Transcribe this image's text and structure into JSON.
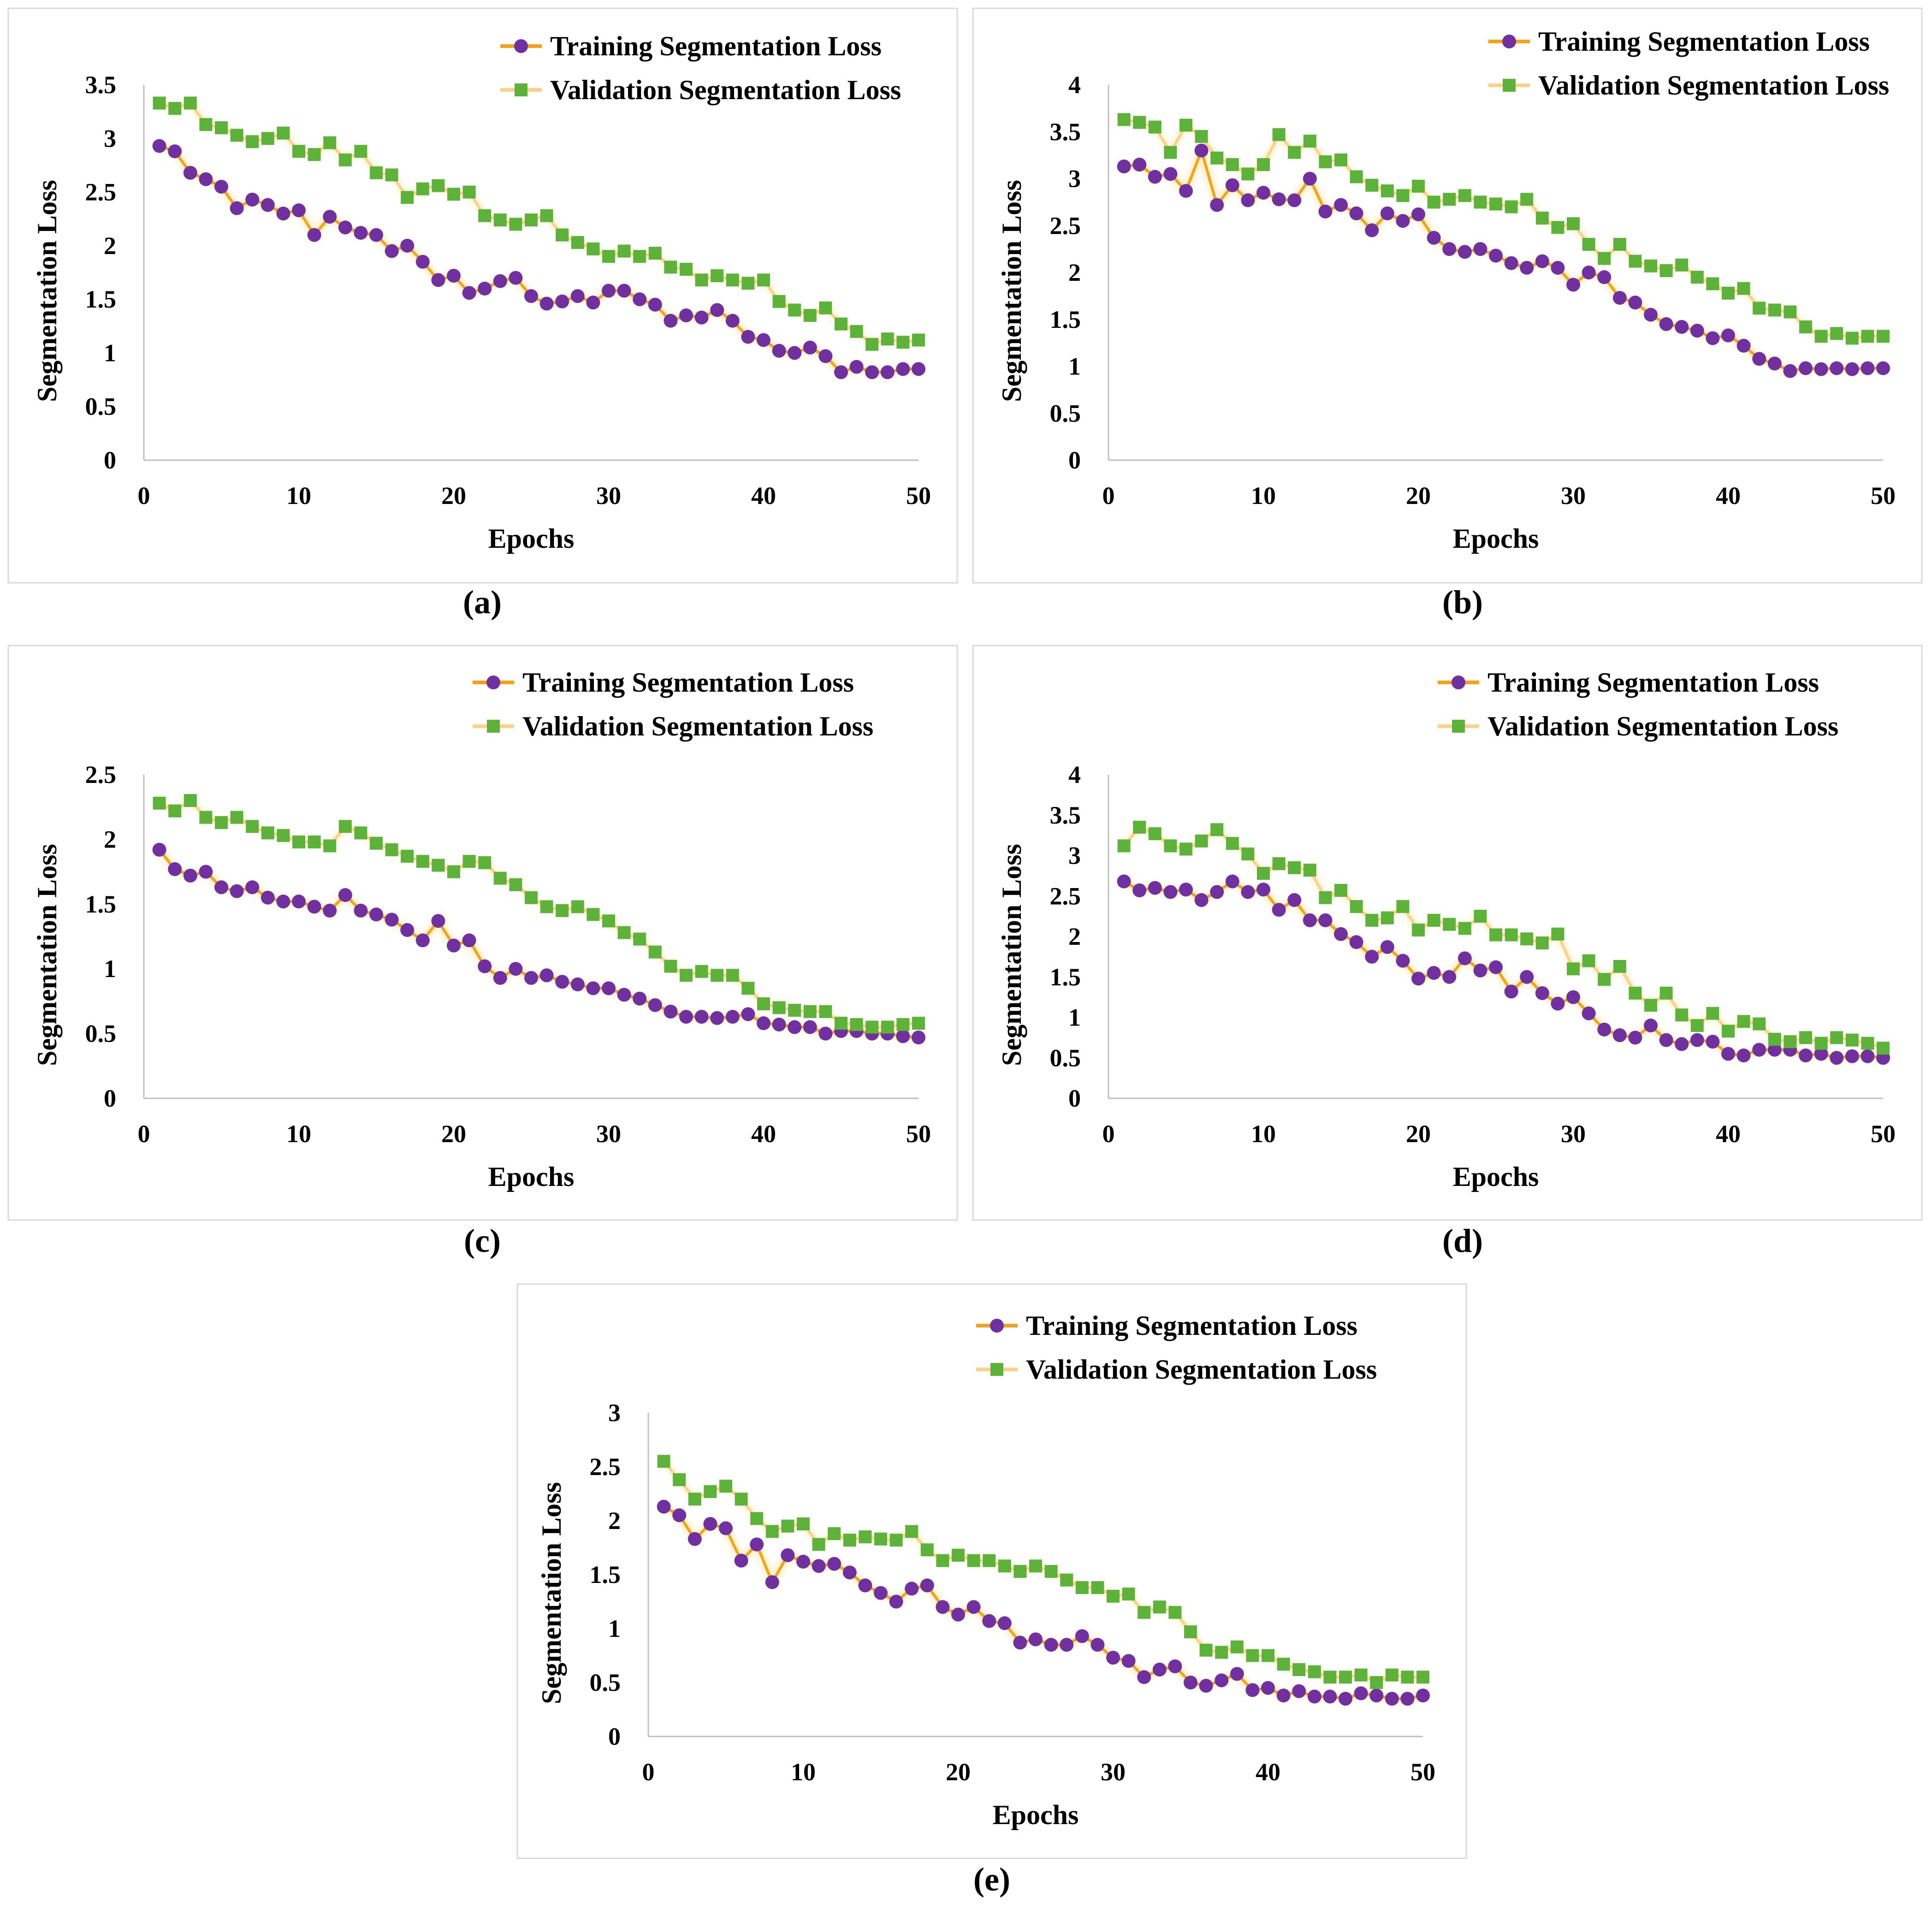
{
  "figure": {
    "colors": {
      "training_line": "#F2A31C",
      "training_marker": "#7030A0",
      "validation_line": "#FFD08A",
      "validation_marker": "#5DB33A",
      "frame": "#D9D9D9",
      "axis": "#BFBFBF"
    }
  },
  "chart_data": [
    {
      "type": "line",
      "caption": "(a)",
      "xlabel": "Epochs",
      "ylabel": "Segmentation Loss",
      "xlim": [
        0,
        50
      ],
      "ylim": [
        0,
        3.5
      ],
      "xticks": [
        "0",
        "10",
        "20",
        "30",
        "40",
        "50"
      ],
      "yticks": [
        "0",
        "0.5",
        "1",
        "1.5",
        "2",
        "2.5",
        "3",
        "3.5"
      ],
      "legend_position": "top-right",
      "x_start": 1,
      "series": [
        {
          "name": "Training Segmentation Loss",
          "values": [
            2.93,
            2.88,
            2.68,
            2.62,
            2.55,
            2.35,
            2.43,
            2.38,
            2.3,
            2.33,
            2.1,
            2.27,
            2.17,
            2.12,
            2.1,
            1.95,
            2.0,
            1.85,
            1.68,
            1.72,
            1.56,
            1.6,
            1.67,
            1.7,
            1.53,
            1.46,
            1.48,
            1.53,
            1.47,
            1.58,
            1.58,
            1.5,
            1.45,
            1.3,
            1.35,
            1.33,
            1.4,
            1.3,
            1.15,
            1.12,
            1.02,
            1.0,
            1.05,
            0.97,
            0.82,
            0.87,
            0.82,
            0.82,
            0.85,
            0.85
          ]
        },
        {
          "name": "Validation Segmentation Loss",
          "values": [
            3.33,
            3.28,
            3.33,
            3.13,
            3.1,
            3.03,
            2.97,
            3.0,
            3.05,
            2.88,
            2.85,
            2.96,
            2.8,
            2.88,
            2.68,
            2.66,
            2.45,
            2.53,
            2.56,
            2.48,
            2.5,
            2.28,
            2.24,
            2.2,
            2.24,
            2.28,
            2.1,
            2.03,
            1.97,
            1.9,
            1.95,
            1.9,
            1.93,
            1.8,
            1.78,
            1.68,
            1.72,
            1.68,
            1.65,
            1.68,
            1.48,
            1.4,
            1.35,
            1.42,
            1.27,
            1.2,
            1.08,
            1.13,
            1.1,
            1.12
          ]
        }
      ]
    },
    {
      "type": "line",
      "caption": "(b)",
      "xlabel": "Epochs",
      "ylabel": "Segmentation Loss",
      "xlim": [
        0,
        50
      ],
      "ylim": [
        0,
        4
      ],
      "xticks": [
        "0",
        "10",
        "20",
        "30",
        "40",
        "50"
      ],
      "yticks": [
        "0",
        "0.5",
        "1",
        "1.5",
        "2",
        "2.5",
        "3",
        "3.5",
        "4"
      ],
      "legend_position": "top-right",
      "x_start": 1,
      "series": [
        {
          "name": "Training Segmentation Loss",
          "values": [
            3.13,
            3.15,
            3.02,
            3.05,
            2.87,
            3.3,
            2.72,
            2.93,
            2.77,
            2.85,
            2.78,
            2.77,
            3.0,
            2.65,
            2.72,
            2.63,
            2.45,
            2.63,
            2.55,
            2.62,
            2.37,
            2.25,
            2.22,
            2.25,
            2.18,
            2.1,
            2.05,
            2.12,
            2.05,
            1.87,
            2.0,
            1.95,
            1.73,
            1.68,
            1.55,
            1.45,
            1.42,
            1.38,
            1.3,
            1.33,
            1.22,
            1.08,
            1.03,
            0.95,
            0.98,
            0.97,
            0.98,
            0.97,
            0.98,
            0.98
          ]
        },
        {
          "name": "Validation Segmentation Loss",
          "values": [
            3.63,
            3.6,
            3.55,
            3.28,
            3.57,
            3.45,
            3.22,
            3.15,
            3.05,
            3.15,
            3.47,
            3.28,
            3.4,
            3.18,
            3.2,
            3.02,
            2.93,
            2.87,
            2.82,
            2.92,
            2.75,
            2.78,
            2.82,
            2.75,
            2.73,
            2.7,
            2.78,
            2.58,
            2.48,
            2.52,
            2.3,
            2.15,
            2.3,
            2.12,
            2.07,
            2.02,
            2.08,
            1.95,
            1.88,
            1.78,
            1.83,
            1.62,
            1.6,
            1.58,
            1.42,
            1.32,
            1.35,
            1.3,
            1.32,
            1.32
          ]
        }
      ]
    },
    {
      "type": "line",
      "caption": "(c)",
      "xlabel": "Epochs",
      "ylabel": "Segmentation Loss",
      "xlim": [
        0,
        50
      ],
      "ylim": [
        0,
        2.5
      ],
      "xticks": [
        "0",
        "10",
        "20",
        "30",
        "40",
        "50"
      ],
      "yticks": [
        "0",
        "0.5",
        "1",
        "1.5",
        "2",
        "2.5"
      ],
      "legend_position": "top-right",
      "x_start": 1,
      "series": [
        {
          "name": "Training Segmentation Loss",
          "values": [
            1.92,
            1.77,
            1.72,
            1.75,
            1.63,
            1.6,
            1.63,
            1.55,
            1.52,
            1.52,
            1.48,
            1.45,
            1.57,
            1.45,
            1.42,
            1.38,
            1.3,
            1.22,
            1.37,
            1.18,
            1.22,
            1.02,
            0.93,
            1.0,
            0.93,
            0.95,
            0.9,
            0.88,
            0.85,
            0.85,
            0.8,
            0.77,
            0.72,
            0.67,
            0.63,
            0.63,
            0.62,
            0.63,
            0.65,
            0.58,
            0.57,
            0.55,
            0.55,
            0.5,
            0.52,
            0.52,
            0.5,
            0.5,
            0.48,
            0.47
          ]
        },
        {
          "name": "Validation Segmentation Loss",
          "values": [
            2.28,
            2.22,
            2.3,
            2.17,
            2.13,
            2.17,
            2.1,
            2.05,
            2.03,
            1.98,
            1.98,
            1.95,
            2.1,
            2.05,
            1.97,
            1.92,
            1.87,
            1.83,
            1.8,
            1.75,
            1.83,
            1.82,
            1.7,
            1.65,
            1.55,
            1.48,
            1.45,
            1.48,
            1.42,
            1.37,
            1.28,
            1.23,
            1.13,
            1.02,
            0.95,
            0.98,
            0.95,
            0.95,
            0.85,
            0.73,
            0.7,
            0.68,
            0.67,
            0.67,
            0.58,
            0.57,
            0.55,
            0.55,
            0.57,
            0.58
          ]
        }
      ]
    },
    {
      "type": "line",
      "caption": "(d)",
      "xlabel": "Epochs",
      "ylabel": "Segmentation Loss",
      "xlim": [
        0,
        50
      ],
      "ylim": [
        0,
        4
      ],
      "xticks": [
        "0",
        "10",
        "20",
        "30",
        "40",
        "50"
      ],
      "yticks": [
        "0",
        "0.5",
        "1",
        "1.5",
        "2",
        "2.5",
        "3",
        "3.5",
        "4"
      ],
      "legend_position": "top-right",
      "x_start": 1,
      "series": [
        {
          "name": "Training Segmentation Loss",
          "values": [
            2.68,
            2.57,
            2.6,
            2.55,
            2.58,
            2.45,
            2.55,
            2.68,
            2.55,
            2.58,
            2.33,
            2.45,
            2.2,
            2.2,
            2.03,
            1.93,
            1.75,
            1.87,
            1.7,
            1.48,
            1.55,
            1.5,
            1.73,
            1.58,
            1.62,
            1.32,
            1.5,
            1.3,
            1.17,
            1.25,
            1.05,
            0.85,
            0.78,
            0.75,
            0.9,
            0.72,
            0.67,
            0.72,
            0.7,
            0.55,
            0.53,
            0.6,
            0.6,
            0.6,
            0.53,
            0.55,
            0.5,
            0.52,
            0.52,
            0.5
          ]
        },
        {
          "name": "Validation Segmentation Loss",
          "values": [
            3.12,
            3.35,
            3.27,
            3.12,
            3.08,
            3.18,
            3.32,
            3.15,
            3.02,
            2.78,
            2.9,
            2.85,
            2.82,
            2.48,
            2.57,
            2.37,
            2.2,
            2.23,
            2.37,
            2.08,
            2.2,
            2.15,
            2.1,
            2.25,
            2.02,
            2.02,
            1.97,
            1.92,
            2.03,
            1.6,
            1.7,
            1.47,
            1.63,
            1.3,
            1.15,
            1.3,
            1.03,
            0.9,
            1.05,
            0.83,
            0.95,
            0.92,
            0.73,
            0.7,
            0.75,
            0.68,
            0.75,
            0.72,
            0.68,
            0.62
          ]
        }
      ]
    },
    {
      "type": "line",
      "caption": "(e)",
      "xlabel": "Epochs",
      "ylabel": "Segmentation Loss",
      "xlim": [
        0,
        50
      ],
      "ylim": [
        0,
        3
      ],
      "xticks": [
        "0",
        "10",
        "20",
        "30",
        "40",
        "50"
      ],
      "yticks": [
        "0",
        "0.5",
        "1",
        "1.5",
        "2",
        "2.5",
        "3"
      ],
      "legend_position": "top-right",
      "x_start": 1,
      "series": [
        {
          "name": "Training Segmentation Loss",
          "values": [
            2.13,
            2.05,
            1.83,
            1.97,
            1.93,
            1.63,
            1.78,
            1.43,
            1.68,
            1.62,
            1.58,
            1.6,
            1.52,
            1.4,
            1.33,
            1.25,
            1.37,
            1.4,
            1.2,
            1.13,
            1.2,
            1.07,
            1.05,
            0.87,
            0.9,
            0.85,
            0.85,
            0.93,
            0.85,
            0.73,
            0.7,
            0.55,
            0.62,
            0.65,
            0.5,
            0.47,
            0.52,
            0.58,
            0.43,
            0.45,
            0.38,
            0.42,
            0.37,
            0.37,
            0.35,
            0.4,
            0.38,
            0.35,
            0.35,
            0.38
          ]
        },
        {
          "name": "Validation Segmentation Loss",
          "values": [
            2.55,
            2.38,
            2.2,
            2.27,
            2.32,
            2.2,
            2.02,
            1.9,
            1.95,
            1.97,
            1.78,
            1.88,
            1.82,
            1.85,
            1.83,
            1.82,
            1.9,
            1.73,
            1.63,
            1.68,
            1.63,
            1.63,
            1.58,
            1.53,
            1.58,
            1.53,
            1.45,
            1.38,
            1.38,
            1.3,
            1.32,
            1.15,
            1.2,
            1.15,
            0.97,
            0.8,
            0.78,
            0.83,
            0.75,
            0.75,
            0.67,
            0.62,
            0.6,
            0.55,
            0.55,
            0.57,
            0.5,
            0.57,
            0.55,
            0.55
          ]
        }
      ]
    }
  ]
}
